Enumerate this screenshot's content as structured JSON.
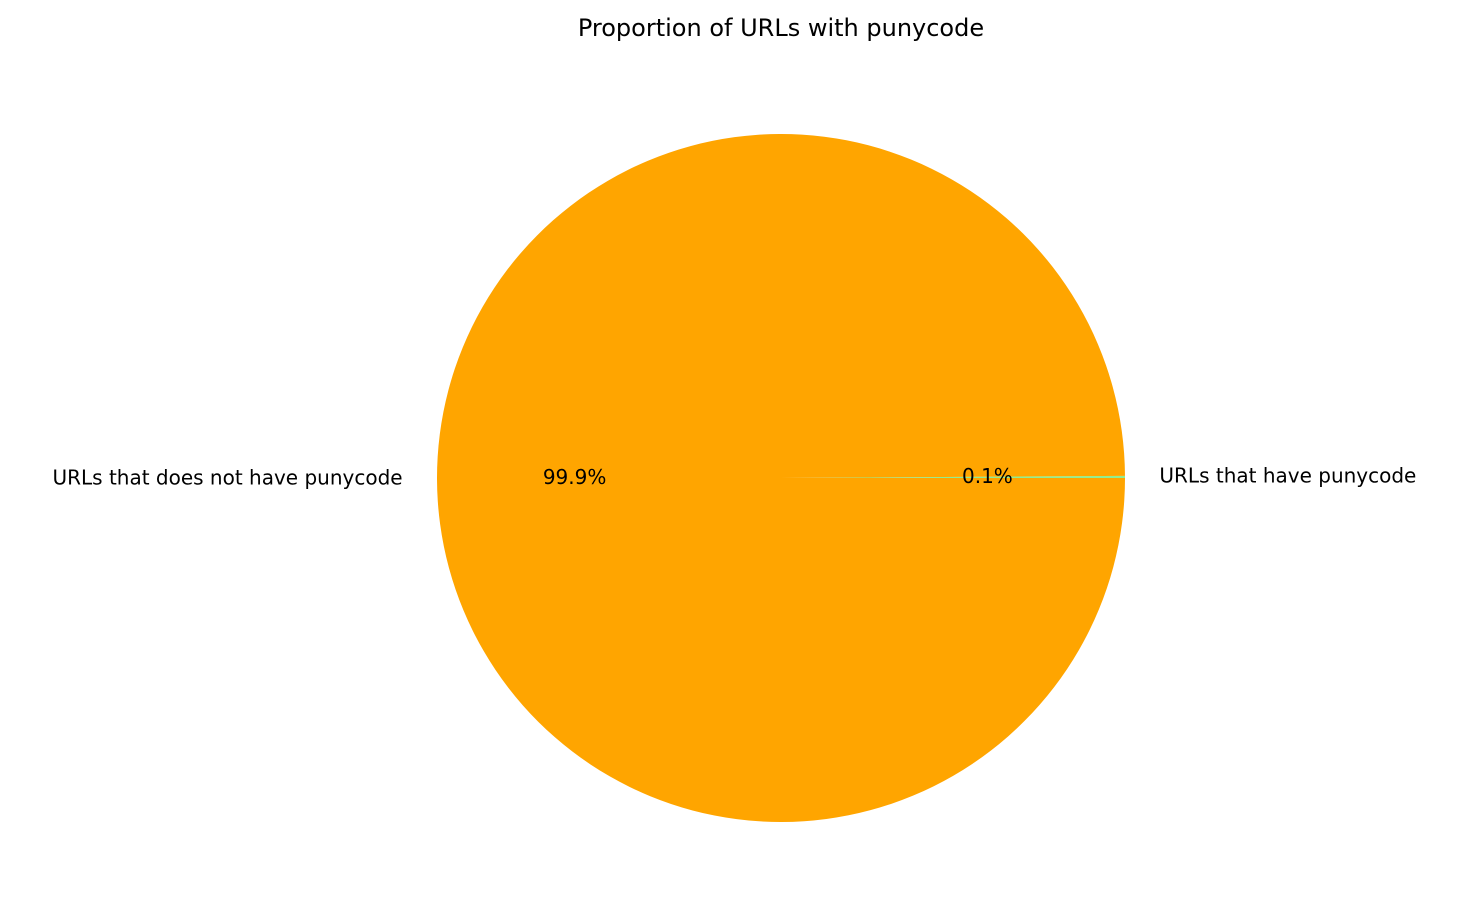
{
  "chart_data": {
    "type": "pie",
    "title": "Proportion of URLs with punycode",
    "slices": [
      {
        "label": "URLs that have punycode",
        "value": 0.1,
        "pct_label": "0.1%",
        "color": "#90ee90"
      },
      {
        "label": "URLs that does not have punycode",
        "value": 99.9,
        "pct_label": "99.9%",
        "color": "#ffa500"
      }
    ],
    "start_angle": 0,
    "direction": "counterclockwise",
    "legend": "none"
  }
}
